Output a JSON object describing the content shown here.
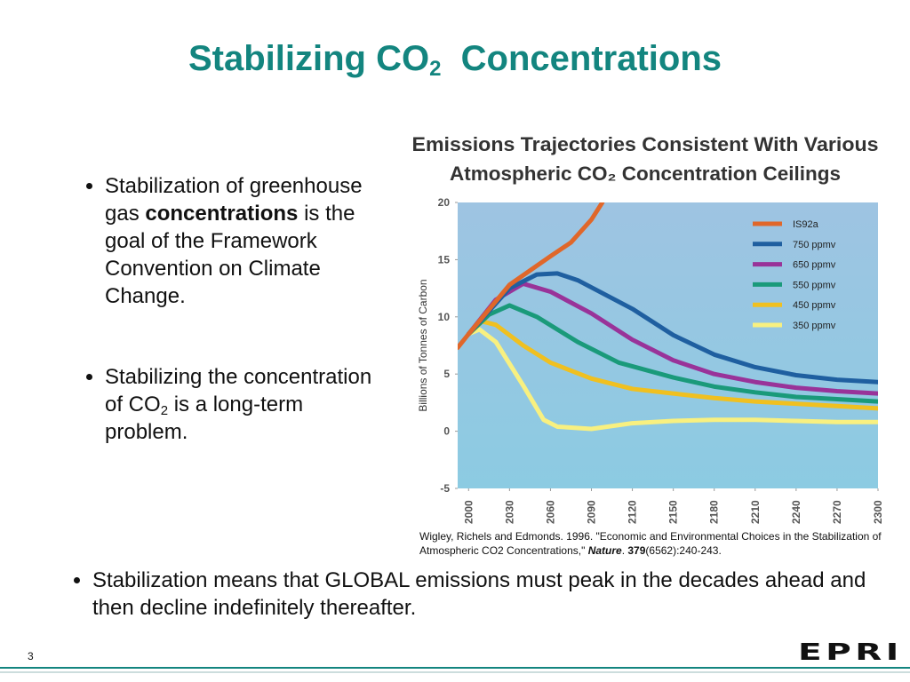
{
  "title": {
    "main": "Stabilizing CO",
    "sub": "2",
    "rest": "  Concentrations"
  },
  "bullets": [
    [
      "Stabilization of greenhouse gas ",
      "concentrations",
      " is the goal of the Framework Convention on Climate Change."
    ],
    [
      "Stabilizing the concentration of CO",
      "2",
      " is a long-term problem."
    ]
  ],
  "bottom_bullet": "Stabilization means that GLOBAL emissions must peak in the decades ahead and then decline indefinitely thereafter.",
  "citation": [
    "Wigley, Richels and Edmonds.  1996. \"Economic and Environmental Choices in the Stabilization of Atmospheric CO2 Concentrations,\" ",
    "Nature",
    ". ",
    "379",
    "(6562):240-243."
  ],
  "footer": {
    "page": "3",
    "logo": "EPRI"
  },
  "chart_data": {
    "type": "line",
    "title": [
      "Emissions Trajectories Consistent With Various",
      "Atmospheric CO₂ Concentration Ceilings"
    ],
    "y_label": "Billions of Tonnes of Carbon",
    "xlim": [
      1992,
      2300
    ],
    "xticks": [
      2000,
      2030,
      2060,
      2090,
      2120,
      2150,
      2180,
      2210,
      2240,
      2270,
      2300
    ],
    "ylim": [
      -5,
      20
    ],
    "yticks": [
      -5,
      0,
      5,
      10,
      15,
      20
    ],
    "series": [
      {
        "name": "IS92a",
        "color": "#e0672a",
        "x": [
          1992,
          2000,
          2030,
          2060,
          2075,
          2090,
          2098
        ],
        "values": [
          7.3,
          8.5,
          12.8,
          15.3,
          16.5,
          18.5,
          20
        ]
      },
      {
        "name": "750 ppmv",
        "color": "#1f5fa0",
        "x": [
          2000,
          2030,
          2050,
          2065,
          2080,
          2120,
          2150,
          2180,
          2210,
          2240,
          2270,
          2300
        ],
        "values": [
          8.5,
          12.5,
          13.7,
          13.8,
          13.2,
          10.7,
          8.4,
          6.7,
          5.6,
          4.9,
          4.5,
          4.3
        ]
      },
      {
        "name": "650 ppmv",
        "color": "#993399",
        "x": [
          2000,
          2020,
          2040,
          2060,
          2090,
          2120,
          2150,
          2180,
          2210,
          2240,
          2270,
          2300
        ],
        "values": [
          8.5,
          11.5,
          12.9,
          12.2,
          10.3,
          8.0,
          6.2,
          5.0,
          4.3,
          3.8,
          3.5,
          3.3
        ]
      },
      {
        "name": "550 ppmv",
        "color": "#1a9a7a",
        "x": [
          2000,
          2015,
          2030,
          2050,
          2080,
          2110,
          2150,
          2180,
          2210,
          2240,
          2270,
          2300
        ],
        "values": [
          8.5,
          10.2,
          11.0,
          10.0,
          7.8,
          6.0,
          4.7,
          3.9,
          3.4,
          3.0,
          2.8,
          2.6
        ]
      },
      {
        "name": "450 ppmv",
        "color": "#f0c020",
        "x": [
          2000,
          2010,
          2020,
          2040,
          2060,
          2090,
          2120,
          2150,
          2180,
          2210,
          2240,
          2270,
          2300
        ],
        "values": [
          8.5,
          9.6,
          9.3,
          7.5,
          6.0,
          4.6,
          3.7,
          3.3,
          2.9,
          2.6,
          2.4,
          2.2,
          2.0
        ]
      },
      {
        "name": "350 ppmv",
        "color": "#f8f080",
        "x": [
          2000,
          2008,
          2020,
          2040,
          2055,
          2065,
          2090,
          2120,
          2150,
          2180,
          2210,
          2240,
          2270,
          2300
        ],
        "values": [
          8.5,
          8.9,
          7.8,
          4.0,
          1.0,
          0.4,
          0.2,
          0.7,
          0.9,
          1.0,
          1.0,
          0.9,
          0.8,
          0.8
        ]
      }
    ]
  }
}
